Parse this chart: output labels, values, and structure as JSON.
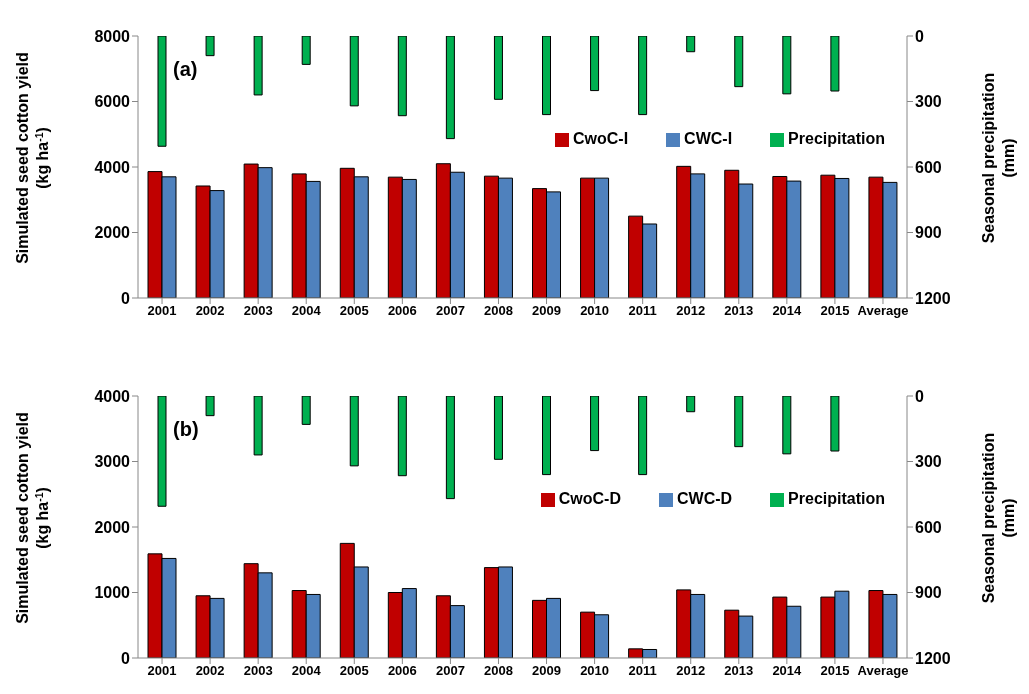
{
  "chart_data": [
    {
      "type": "bar",
      "categories": [
        "2001",
        "2002",
        "2003",
        "2004",
        "2005",
        "2006",
        "2007",
        "2008",
        "2009",
        "2010",
        "2011",
        "2012",
        "2013",
        "2014",
        "2015",
        "Average"
      ],
      "series": [
        {
          "name": "CwoC-I",
          "color": "#c00000",
          "values": [
            3860,
            3420,
            4090,
            3790,
            3960,
            3690,
            4100,
            3720,
            3340,
            3660,
            2500,
            4020,
            3900,
            3710,
            3750,
            3690
          ]
        },
        {
          "name": "CWC-I",
          "color": "#4f81bd",
          "values": [
            3700,
            3280,
            3980,
            3560,
            3700,
            3620,
            3840,
            3660,
            3240,
            3660,
            2260,
            3790,
            3480,
            3570,
            3650,
            3530
          ]
        },
        {
          "name": "Precipitation",
          "color": "#00b050",
          "axis": "y2",
          "values": [
            505,
            90,
            270,
            130,
            320,
            365,
            470,
            290,
            360,
            250,
            360,
            72,
            232,
            265,
            252,
            null
          ]
        }
      ],
      "ylabel": "Simulated seed cotton yield\n(kg ha$^{-1}$)",
      "y2label": "Seasonal precipitation\n(mm)",
      "ylim": [
        0,
        8000
      ],
      "yticks": [
        0,
        2000,
        4000,
        6000,
        8000
      ],
      "y2lim": [
        1200,
        0
      ],
      "y2ticks": [
        0,
        300,
        600,
        900,
        1200
      ],
      "legend": "right",
      "annotations": [
        "(a)"
      ]
    },
    {
      "type": "bar",
      "categories": [
        "2001",
        "2002",
        "2003",
        "2004",
        "2005",
        "2006",
        "2007",
        "2008",
        "2009",
        "2010",
        "2011",
        "2012",
        "2013",
        "2014",
        "2015",
        "Average"
      ],
      "series": [
        {
          "name": "CwoC-D",
          "color": "#c00000",
          "values": [
            1590,
            950,
            1440,
            1030,
            1750,
            1000,
            950,
            1380,
            880,
            700,
            140,
            1040,
            730,
            930,
            930,
            1030
          ]
        },
        {
          "name": "CWC-D",
          "color": "#4f81bd",
          "values": [
            1520,
            910,
            1300,
            970,
            1390,
            1060,
            800,
            1390,
            910,
            660,
            130,
            970,
            640,
            790,
            1020,
            970
          ]
        },
        {
          "name": "Precipitation",
          "color": "#00b050",
          "axis": "y2",
          "values": [
            505,
            90,
            270,
            130,
            320,
            365,
            470,
            290,
            360,
            250,
            360,
            72,
            232,
            265,
            252,
            null
          ]
        }
      ],
      "ylabel": "Simulated seed cotton yield\n(kg ha$^{-1}$)",
      "y2label": "Seasonal precipitation\n(mm)",
      "ylim": [
        0,
        4000
      ],
      "yticks": [
        0,
        1000,
        2000,
        3000,
        4000
      ],
      "y2lim": [
        1200,
        0
      ],
      "y2ticks": [
        0,
        300,
        600,
        900,
        1200
      ],
      "legend": "right",
      "annotations": [
        "(b)"
      ]
    }
  ]
}
